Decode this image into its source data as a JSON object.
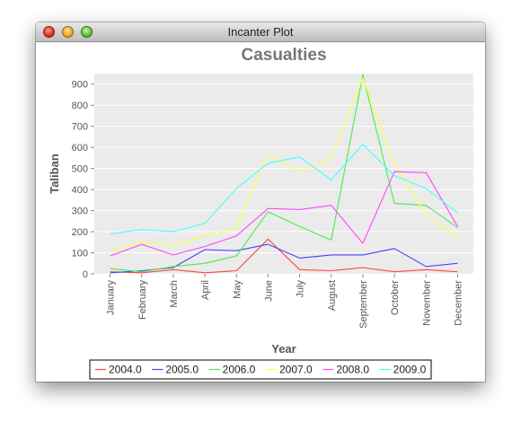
{
  "window": {
    "title": "Incanter Plot"
  },
  "colors": {
    "plot_bg": "#ebebeb",
    "gridline": "#ffffff",
    "text": "#555555",
    "title_text": "#777777",
    "series": [
      "#ff4444",
      "#4444ff",
      "#44ee44",
      "#ffff44",
      "#ff44ff",
      "#44ffff"
    ]
  },
  "chart_data": {
    "type": "line",
    "title": "Casualties",
    "xlabel": "Year",
    "ylabel": "Taliban",
    "ylim": [
      0,
      950
    ],
    "yticks": [
      0,
      100,
      200,
      300,
      400,
      500,
      600,
      700,
      800,
      900
    ],
    "grid": true,
    "legend_position": "bottom",
    "categories": [
      "January",
      "February",
      "March",
      "April",
      "May",
      "June",
      "July",
      "August",
      "September",
      "October",
      "November",
      "December"
    ],
    "series": [
      {
        "name": "2004.0",
        "values": [
          10,
          5,
          20,
          5,
          15,
          165,
          20,
          15,
          30,
          10,
          20,
          10
        ]
      },
      {
        "name": "2005.0",
        "values": [
          5,
          15,
          30,
          115,
          110,
          140,
          75,
          90,
          90,
          120,
          35,
          50
        ]
      },
      {
        "name": "2006.0",
        "values": [
          25,
          10,
          35,
          50,
          85,
          295,
          225,
          160,
          945,
          335,
          325,
          220
        ]
      },
      {
        "name": "2007.0",
        "values": [
          110,
          150,
          135,
          180,
          215,
          565,
          485,
          550,
          930,
          520,
          280,
          170
        ]
      },
      {
        "name": "2008.0",
        "values": [
          85,
          140,
          90,
          130,
          180,
          310,
          305,
          325,
          145,
          485,
          480,
          225
        ]
      },
      {
        "name": "2009.0",
        "values": [
          190,
          210,
          200,
          240,
          405,
          525,
          555,
          445,
          615,
          465,
          405,
          290
        ]
      }
    ]
  }
}
